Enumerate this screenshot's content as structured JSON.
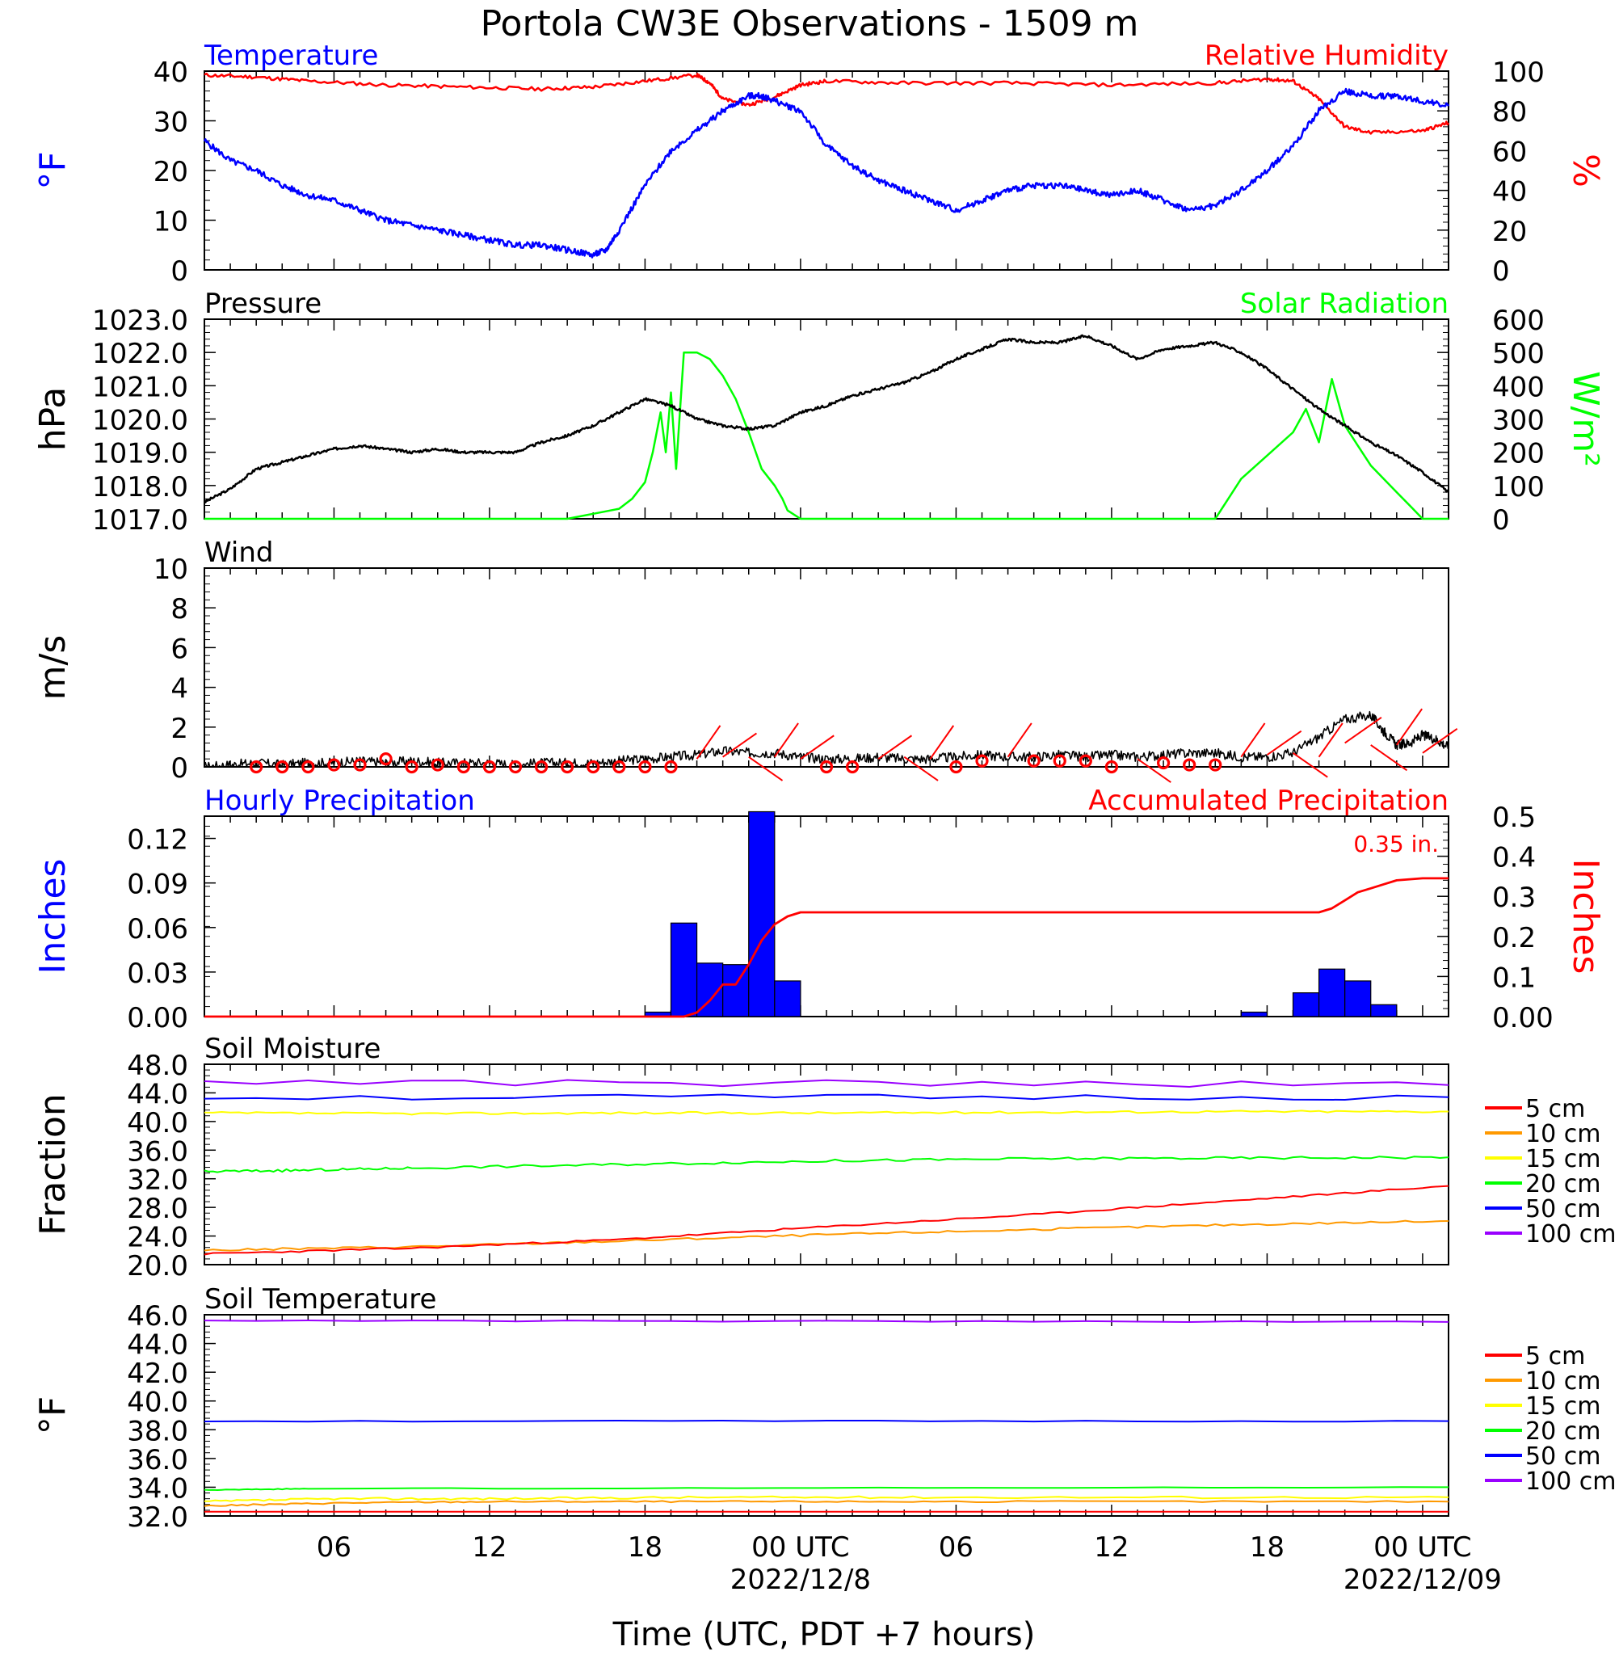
{
  "title": "Portola CW3E Observations - 1509 m",
  "x_axis": {
    "label": "Time (UTC, PDT +7 hours)",
    "start_hour": 1,
    "end_hour": 49,
    "ticks": [
      {
        "hour": 6,
        "label": "06",
        "date": ""
      },
      {
        "hour": 12,
        "label": "12",
        "date": ""
      },
      {
        "hour": 18,
        "label": "18",
        "date": ""
      },
      {
        "hour": 24,
        "label": "00 UTC",
        "date": "2022/12/8"
      },
      {
        "hour": 30,
        "label": "06",
        "date": ""
      },
      {
        "hour": 36,
        "label": "12",
        "date": ""
      },
      {
        "hour": 42,
        "label": "18",
        "date": ""
      },
      {
        "hour": 48,
        "label": "00 UTC",
        "date": "2022/12/09"
      }
    ]
  },
  "colors": {
    "temperature": "#0000ff",
    "humidity": "#ff0000",
    "pressure": "#000000",
    "solar": "#00ff00",
    "wind": "#000000",
    "wind_barb": "#ff0000",
    "hourly_precip": "#0000ff",
    "accum_precip": "#ff0000",
    "soil_5": "#ff0000",
    "soil_10": "#ff9900",
    "soil_15": "#ffff00",
    "soil_20": "#00ff00",
    "soil_50": "#0000ff",
    "soil_100": "#9900ff"
  },
  "panels": {
    "temp_rh": {
      "left_title": "Temperature",
      "right_title": "Relative Humidity",
      "left_unit": "°F",
      "right_unit": "%",
      "left_ticks": [
        "0",
        "10",
        "20",
        "30",
        "40"
      ],
      "right_ticks": [
        "0",
        "20",
        "40",
        "60",
        "80",
        "100"
      ]
    },
    "pressure_solar": {
      "left_title": "Pressure",
      "right_title": "Solar Radiation",
      "left_unit": "hPa",
      "right_unit": "W/m²",
      "left_ticks": [
        "1017.0",
        "1018.0",
        "1019.0",
        "1020.0",
        "1021.0",
        "1022.0",
        "1023.0"
      ],
      "right_ticks": [
        "0",
        "100",
        "200",
        "300",
        "400",
        "500",
        "600"
      ]
    },
    "wind": {
      "left_title": "Wind",
      "left_unit": "m/s",
      "left_ticks": [
        "0",
        "2",
        "4",
        "6",
        "8",
        "10"
      ]
    },
    "precip": {
      "left_title": "Hourly Precipitation",
      "right_title": "Accumulated Precipitation",
      "left_unit": "Inches",
      "right_unit": "Inches",
      "total_label": "0.35 in.",
      "left_ticks": [
        "0.00",
        "0.03",
        "0.06",
        "0.09",
        "0.12"
      ],
      "right_ticks": [
        "0.00",
        "0.1",
        "0.2",
        "0.3",
        "0.4",
        "0.5"
      ]
    },
    "soil_moisture": {
      "left_title": "Soil Moisture",
      "left_unit": "Fraction",
      "left_ticks": [
        "20.0",
        "24.0",
        "28.0",
        "32.0",
        "36.0",
        "40.0",
        "44.0",
        "48.0"
      ]
    },
    "soil_temp": {
      "left_title": "Soil Temperature",
      "left_unit": "°F",
      "left_ticks": [
        "32.0",
        "34.0",
        "36.0",
        "38.0",
        "40.0",
        "42.0",
        "44.0",
        "46.0"
      ]
    }
  },
  "legend": [
    "5 cm",
    "10 cm",
    "15 cm",
    "20 cm",
    "50 cm",
    "100 cm"
  ],
  "chart_data": [
    {
      "type": "line",
      "panel": "temp_rh",
      "series": [
        {
          "name": "Temperature",
          "axis": "left",
          "x": [
            1,
            2,
            3,
            4,
            5,
            6,
            7,
            8,
            9,
            10,
            11,
            12,
            13,
            14,
            15,
            16,
            16.5,
            17,
            18,
            19,
            20,
            21,
            22,
            22.5,
            23,
            24,
            25,
            26,
            27,
            28,
            29,
            30,
            31,
            32,
            33,
            34,
            35,
            36,
            37,
            38,
            39,
            40,
            41,
            42,
            43,
            44,
            45,
            46,
            47,
            48,
            49
          ],
          "y": [
            26,
            22,
            20,
            17,
            15,
            14,
            12,
            10,
            9,
            8,
            7,
            6,
            5,
            5,
            4,
            3,
            4,
            8,
            17,
            24,
            28,
            32,
            35,
            35,
            34,
            32,
            25,
            21,
            18,
            16,
            14,
            12,
            14,
            16,
            17,
            17,
            16,
            15,
            16,
            14,
            12,
            13,
            16,
            20,
            25,
            32,
            36,
            35,
            35,
            34,
            33
          ]
        },
        {
          "name": "Relative Humidity",
          "axis": "right",
          "x": [
            1,
            3,
            5,
            8,
            11,
            14,
            16,
            18,
            20,
            20.5,
            21,
            22,
            23,
            24,
            25,
            28,
            32,
            36,
            40,
            42,
            43,
            44,
            45,
            46,
            48,
            49
          ],
          "y": [
            98,
            97,
            95,
            93,
            92,
            91,
            92,
            95,
            98,
            94,
            86,
            83,
            87,
            93,
            95,
            94,
            94,
            93,
            94,
            96,
            95,
            86,
            72,
            69,
            70,
            74
          ]
        }
      ],
      "ylim": [
        0,
        40
      ],
      "ylim_right": [
        0,
        100
      ]
    },
    {
      "type": "line",
      "panel": "pressure_solar",
      "series": [
        {
          "name": "Pressure",
          "axis": "left",
          "x": [
            1,
            2,
            3,
            4,
            5,
            6,
            7,
            8,
            9,
            10,
            11,
            12,
            13,
            14,
            15,
            16,
            17,
            18,
            19,
            20,
            21,
            22,
            23,
            24,
            25,
            26,
            27,
            28,
            29,
            30,
            31,
            32,
            33,
            34,
            35,
            36,
            37,
            38,
            39,
            40,
            41,
            42,
            43,
            44,
            45,
            46,
            47,
            48,
            49
          ],
          "y": [
            1017.5,
            1017.9,
            1018.5,
            1018.7,
            1018.9,
            1019.1,
            1019.2,
            1019.1,
            1019.0,
            1019.1,
            1019.0,
            1019.0,
            1019.0,
            1019.3,
            1019.5,
            1019.8,
            1020.2,
            1020.6,
            1020.4,
            1020.0,
            1019.8,
            1019.7,
            1019.8,
            1020.2,
            1020.4,
            1020.7,
            1020.9,
            1021.1,
            1021.4,
            1021.8,
            1022.1,
            1022.4,
            1022.3,
            1022.3,
            1022.5,
            1022.2,
            1021.8,
            1022.1,
            1022.2,
            1022.3,
            1022.0,
            1021.5,
            1020.9,
            1020.3,
            1019.8,
            1019.3,
            1018.9,
            1018.4,
            1017.8
          ]
        },
        {
          "name": "Solar Radiation",
          "axis": "right",
          "x": [
            1,
            15,
            16,
            17,
            17.5,
            18,
            18.3,
            18.6,
            18.8,
            19,
            19.2,
            19.5,
            20,
            20.5,
            21,
            21.5,
            22,
            22.5,
            23,
            23.3,
            23.5,
            24,
            40,
            41,
            42,
            43,
            43.5,
            44,
            44.5,
            45,
            45.5,
            46,
            46.5,
            47,
            47.5,
            48,
            49
          ],
          "y": [
            0,
            0,
            15,
            30,
            60,
            110,
            200,
            320,
            200,
            380,
            150,
            500,
            500,
            480,
            430,
            360,
            260,
            150,
            100,
            60,
            25,
            0,
            0,
            120,
            190,
            260,
            330,
            230,
            420,
            280,
            220,
            160,
            120,
            80,
            40,
            0,
            0
          ]
        }
      ],
      "ylim": [
        1017,
        1023
      ],
      "ylim_right": [
        0,
        600
      ]
    },
    {
      "type": "line",
      "panel": "wind",
      "series": [
        {
          "name": "Wind",
          "x": [
            1,
            2,
            3,
            4,
            5,
            6,
            7,
            8,
            9,
            10,
            11,
            12,
            13,
            14,
            15,
            16,
            17,
            18,
            19,
            20,
            21,
            22,
            23,
            24,
            25,
            26,
            27,
            28,
            29,
            30,
            31,
            32,
            33,
            34,
            35,
            36,
            37,
            38,
            39,
            40,
            41,
            42,
            43,
            44,
            45,
            46,
            46.5,
            47,
            47.5,
            48,
            48.5,
            49
          ],
          "y": [
            0,
            0.1,
            0.2,
            0.1,
            0.2,
            0.2,
            0.3,
            0.2,
            0.3,
            0.2,
            0.2,
            0.2,
            0.1,
            0.2,
            0.2,
            0.2,
            0.3,
            0.4,
            0.5,
            0.6,
            0.8,
            0.7,
            0.7,
            0.5,
            0.4,
            0.4,
            0.5,
            0.4,
            0.4,
            0.5,
            0.6,
            0.5,
            0.5,
            0.6,
            0.5,
            0.6,
            0.5,
            0.6,
            0.7,
            0.7,
            0.5,
            0.5,
            0.7,
            1.5,
            2.4,
            2.6,
            1.8,
            1.1,
            1.2,
            1.6,
            1.4,
            1.0
          ]
        },
        {
          "name": "barbs",
          "x": [
            3,
            4,
            5,
            6,
            7,
            8,
            9,
            10,
            11,
            12,
            13,
            14,
            15,
            16,
            17,
            18,
            19,
            20,
            21,
            22,
            23,
            24,
            25,
            26,
            27,
            28,
            29,
            30,
            31,
            32,
            33,
            34,
            35,
            36,
            37,
            38,
            39,
            40,
            41,
            42,
            43,
            44,
            45,
            46,
            47,
            48
          ],
          "y": [
            0,
            0,
            0,
            0.1,
            0.1,
            0.4,
            0,
            0.1,
            0,
            0,
            0,
            0,
            0,
            0,
            0,
            0,
            0,
            0.4,
            0.5,
            0.5,
            0.5,
            0.4,
            0,
            0,
            0.4,
            0.5,
            0.4,
            0,
            0.3,
            0.5,
            0.3,
            0.3,
            0.3,
            0,
            0.4,
            0.2,
            0.1,
            0.1,
            0.5,
            0.6,
            0.7,
            0.5,
            1.2,
            1.1,
            1.1,
            0.7
          ]
        }
      ],
      "ylim": [
        0,
        10
      ]
    },
    {
      "type": "bar",
      "panel": "precip",
      "x": [
        19,
        20,
        21,
        22,
        23,
        24,
        25,
        26,
        27,
        28,
        29,
        30,
        31,
        32,
        33,
        34,
        35,
        36,
        37,
        38,
        39,
        40,
        41,
        42,
        43,
        44,
        45,
        46,
        47,
        48
      ],
      "series": [
        {
          "name": "Hourly Precipitation",
          "axis": "left",
          "values": [
            0.003,
            0.063,
            0.036,
            0.035,
            0.138,
            0.024,
            0,
            0,
            0,
            0,
            0,
            0,
            0,
            0,
            0,
            0,
            0,
            0,
            0,
            0,
            0,
            0,
            0,
            0.003,
            0,
            0.016,
            0.032,
            0.024,
            0.008,
            0
          ]
        },
        {
          "name": "Accumulated Precipitation",
          "axis": "right",
          "type": "line",
          "x": [
            1,
            19.5,
            20,
            20.5,
            21,
            21.5,
            22,
            22.5,
            23,
            23.5,
            24,
            24.5,
            43,
            44,
            44.5,
            45,
            45.5,
            46,
            46.5,
            47,
            48,
            49
          ],
          "y": [
            0,
            0,
            0.01,
            0.04,
            0.08,
            0.08,
            0.13,
            0.19,
            0.23,
            0.25,
            0.26,
            0.26,
            0.26,
            0.26,
            0.27,
            0.29,
            0.31,
            0.32,
            0.33,
            0.34,
            0.345,
            0.345
          ]
        }
      ],
      "ylim": [
        0,
        0.135
      ],
      "ylim_right": [
        0,
        0.5
      ]
    },
    {
      "type": "line",
      "panel": "soil_moisture",
      "series": [
        {
          "name": "5 cm",
          "x": [
            1,
            9,
            17,
            25,
            33,
            41,
            49
          ],
          "y": [
            21.5,
            22.3,
            23.5,
            25.3,
            27.0,
            29.0,
            31.0
          ]
        },
        {
          "name": "10 cm",
          "x": [
            1,
            9,
            17,
            25,
            33,
            41,
            49
          ],
          "y": [
            22.0,
            22.5,
            23.3,
            24.2,
            24.9,
            25.6,
            26.1
          ]
        },
        {
          "name": "15 cm",
          "x": [
            1,
            9,
            17,
            25,
            33,
            41,
            49
          ],
          "y": [
            41.2,
            41.1,
            41.2,
            41.2,
            41.3,
            41.4,
            41.4
          ]
        },
        {
          "name": "20 cm",
          "x": [
            1,
            5,
            9,
            17,
            25,
            33,
            41,
            49
          ],
          "y": [
            33.0,
            33.2,
            33.5,
            34.0,
            34.5,
            34.8,
            34.9,
            35.0
          ]
        },
        {
          "name": "50 cm",
          "x": [
            1,
            49
          ],
          "y": [
            43.4,
            43.4
          ]
        },
        {
          "name": "100 cm",
          "x": [
            1,
            49
          ],
          "y": [
            45.6,
            45.1
          ]
        }
      ],
      "ylim": [
        20,
        48
      ]
    },
    {
      "type": "line",
      "panel": "soil_temp",
      "series": [
        {
          "name": "5 cm",
          "x": [
            1,
            49
          ],
          "y": [
            32.3,
            32.3
          ]
        },
        {
          "name": "10 cm",
          "x": [
            1,
            6,
            12,
            20,
            30,
            49
          ],
          "y": [
            32.7,
            32.9,
            33.0,
            33.0,
            33.0,
            33.0
          ]
        },
        {
          "name": "15 cm",
          "x": [
            1,
            6,
            12,
            20,
            30,
            49
          ],
          "y": [
            33.0,
            33.2,
            33.2,
            33.3,
            33.3,
            33.3
          ]
        },
        {
          "name": "20 cm",
          "x": [
            1,
            5,
            49
          ],
          "y": [
            33.8,
            33.9,
            34.0
          ]
        },
        {
          "name": "50 cm",
          "x": [
            1,
            49
          ],
          "y": [
            38.6,
            38.6
          ]
        },
        {
          "name": "100 cm",
          "x": [
            1,
            49
          ],
          "y": [
            45.6,
            45.5
          ]
        }
      ],
      "ylim": [
        32,
        46
      ]
    }
  ]
}
